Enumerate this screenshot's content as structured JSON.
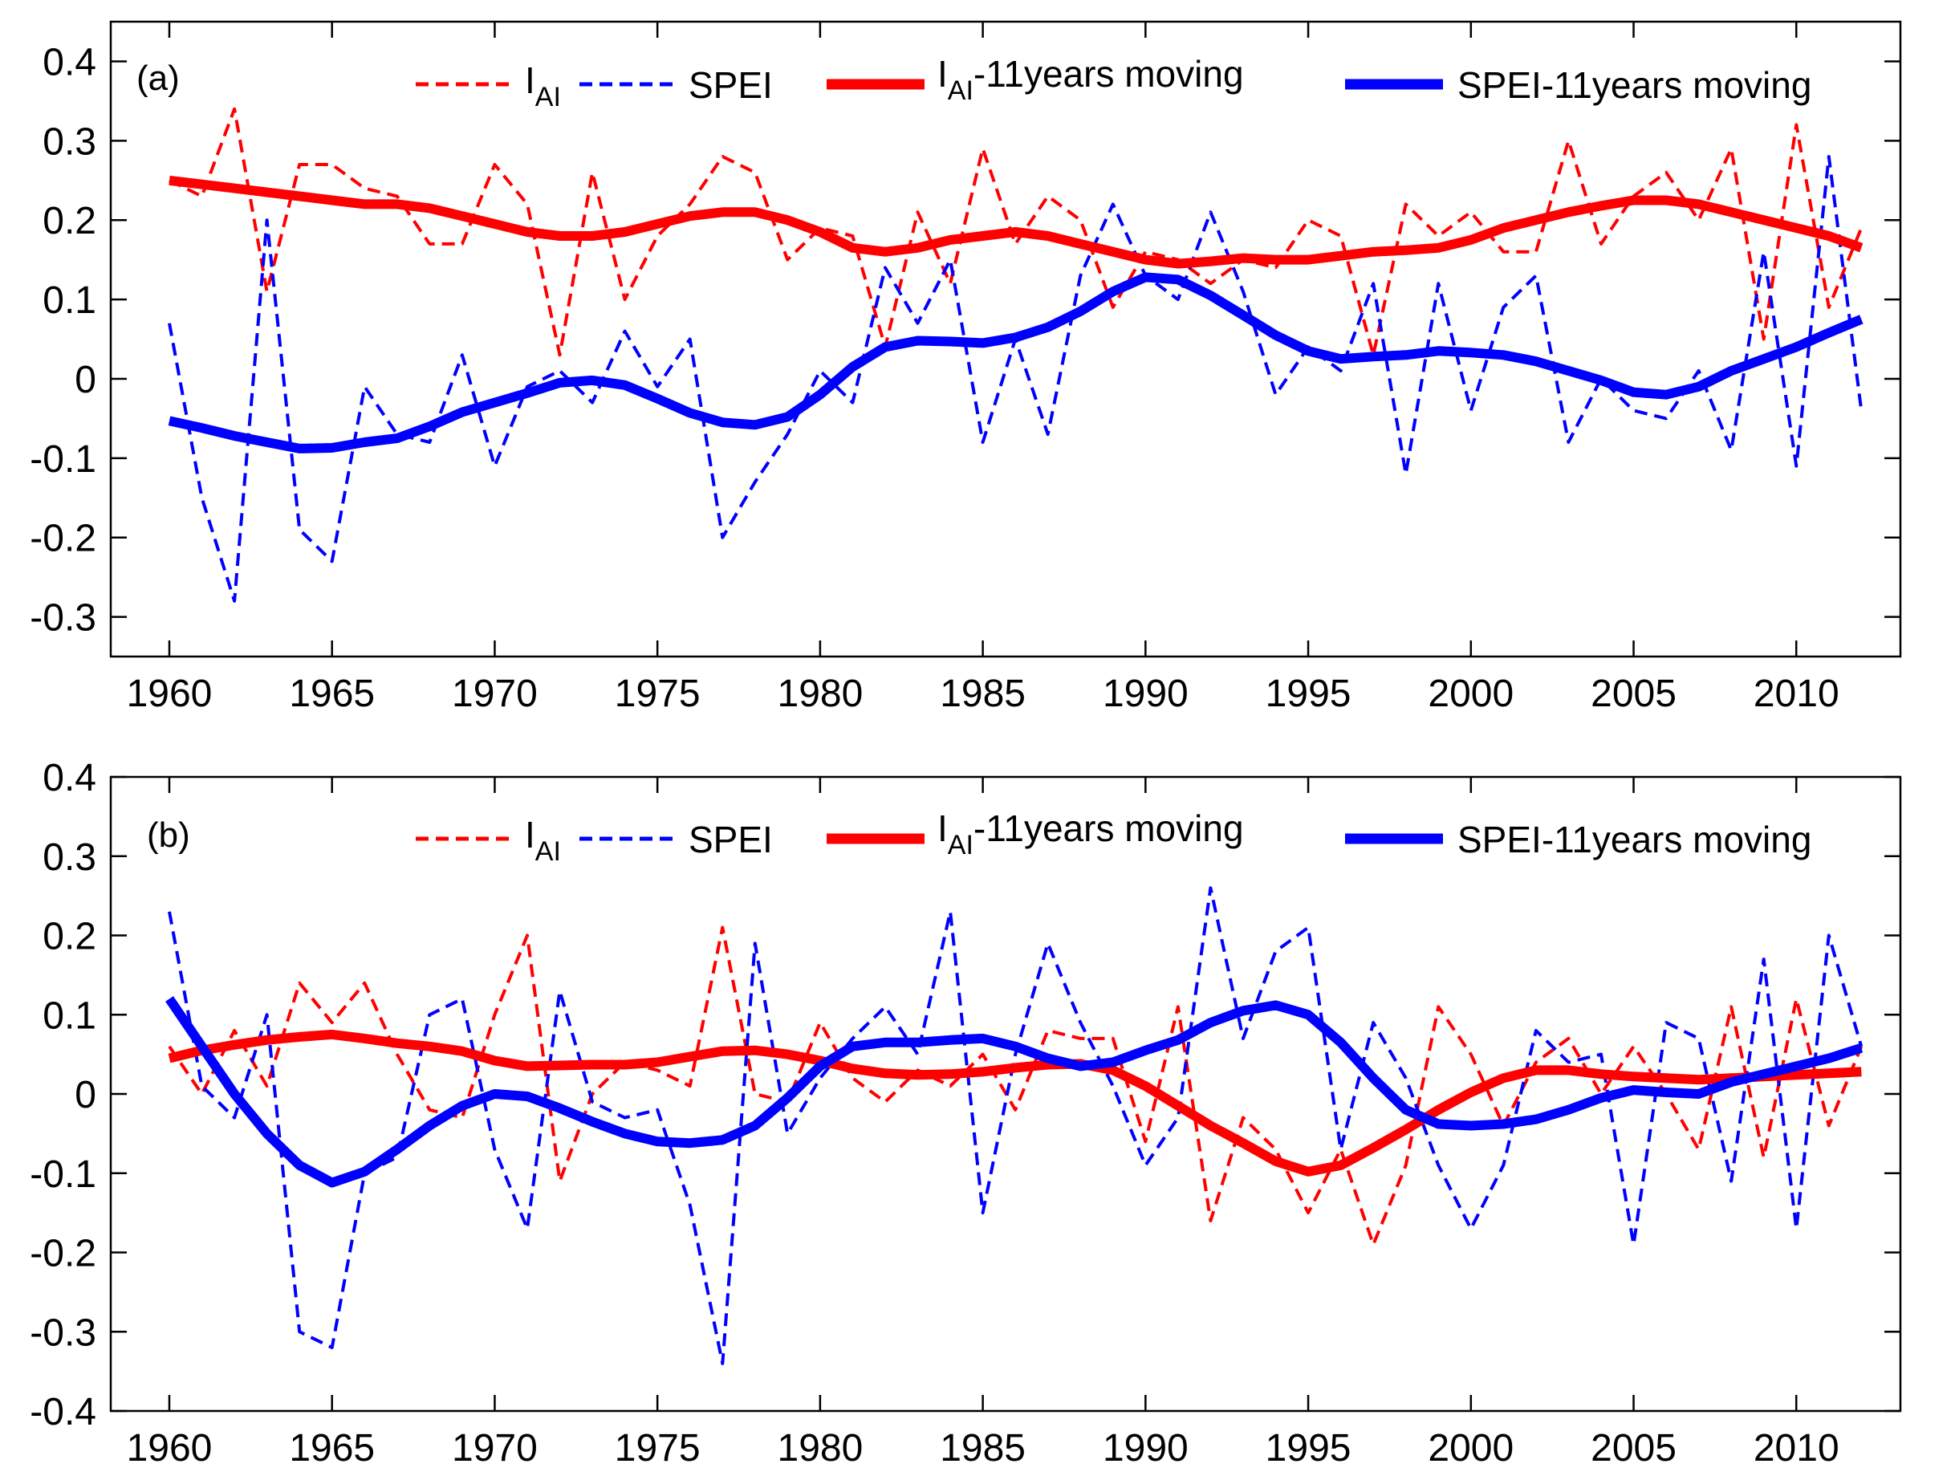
{
  "colors": {
    "ial": "#ff0000",
    "spei": "#0000ff",
    "axis": "#000000"
  },
  "legend_labels": {
    "ial_base": "I",
    "ial_sub": "AI",
    "spei": "SPEI",
    "ial_moving_base": "I",
    "ial_moving_sub": "AI",
    "ial_moving_suffix": "-11years moving",
    "spei_moving": "SPEI-11years moving"
  },
  "chart_data": [
    {
      "type": "line",
      "panel_label": "(a)",
      "xlim": [
        1958.2,
        2013.2
      ],
      "ylim": [
        -0.35,
        0.45
      ],
      "xticks": [
        1960,
        1965,
        1970,
        1975,
        1980,
        1985,
        1990,
        1995,
        2000,
        2005,
        2010
      ],
      "xtick_labels": [
        "1960",
        "1965",
        "1970",
        "1975",
        "1980",
        "1985",
        "1990",
        "1995",
        "2000",
        "2005",
        "2010"
      ],
      "yticks": [
        -0.3,
        -0.2,
        -0.1,
        0,
        0.1,
        0.2,
        0.3,
        0.4
      ],
      "ytick_labels": [
        "-0.3",
        "-0.2",
        "-0.1",
        "0",
        "0.1",
        "0.2",
        "0.3",
        "0.4"
      ],
      "x": [
        1960,
        1961,
        1962,
        1963,
        1964,
        1965,
        1966,
        1967,
        1968,
        1969,
        1970,
        1971,
        1972,
        1973,
        1974,
        1975,
        1976,
        1977,
        1978,
        1979,
        1980,
        1981,
        1982,
        1983,
        1984,
        1985,
        1986,
        1987,
        1988,
        1989,
        1990,
        1991,
        1992,
        1993,
        1994,
        1995,
        1996,
        1997,
        1998,
        1999,
        2000,
        2001,
        2002,
        2003,
        2004,
        2005,
        2006,
        2007,
        2008,
        2009,
        2010,
        2011,
        2012
      ],
      "series": [
        {
          "name": "I_AI",
          "style": "dashed",
          "values": [
            0.25,
            0.23,
            0.34,
            0.11,
            0.27,
            0.27,
            0.24,
            0.23,
            0.17,
            0.17,
            0.27,
            0.22,
            0.03,
            0.26,
            0.1,
            0.18,
            0.22,
            0.28,
            0.26,
            0.15,
            0.19,
            0.18,
            0.04,
            0.21,
            0.12,
            0.29,
            0.17,
            0.23,
            0.2,
            0.09,
            0.16,
            0.15,
            0.12,
            0.15,
            0.14,
            0.2,
            0.18,
            0.03,
            0.22,
            0.18,
            0.21,
            0.16,
            0.16,
            0.3,
            0.17,
            0.23,
            0.26,
            0.2,
            0.29,
            0.05,
            0.32,
            0.09,
            0.19
          ]
        },
        {
          "name": "SPEI",
          "style": "dashed",
          "values": [
            0.07,
            -0.15,
            -0.28,
            0.2,
            -0.19,
            -0.23,
            -0.01,
            -0.07,
            -0.08,
            0.03,
            -0.11,
            -0.01,
            0.01,
            -0.03,
            0.06,
            -0.01,
            0.05,
            -0.2,
            -0.13,
            -0.07,
            0.01,
            -0.03,
            0.14,
            0.07,
            0.15,
            -0.08,
            0.05,
            -0.07,
            0.13,
            0.22,
            0.13,
            0.1,
            0.21,
            0.11,
            -0.02,
            0.04,
            0.01,
            0.12,
            -0.12,
            0.12,
            -0.04,
            0.09,
            0.13,
            -0.08,
            0.0,
            -0.04,
            -0.05,
            0.01,
            -0.09,
            0.16,
            -0.11,
            0.28,
            -0.04
          ]
        },
        {
          "name": "I_AI-11years moving",
          "style": "solid",
          "values": [
            0.25,
            0.245,
            0.24,
            0.235,
            0.23,
            0.225,
            0.22,
            0.22,
            0.215,
            0.205,
            0.195,
            0.185,
            0.18,
            0.18,
            0.185,
            0.195,
            0.205,
            0.21,
            0.21,
            0.2,
            0.185,
            0.165,
            0.16,
            0.165,
            0.175,
            0.18,
            0.185,
            0.18,
            0.17,
            0.16,
            0.15,
            0.145,
            0.148,
            0.152,
            0.15,
            0.15,
            0.155,
            0.16,
            0.162,
            0.165,
            0.175,
            0.19,
            0.2,
            0.21,
            0.218,
            0.225,
            0.225,
            0.22,
            0.21,
            0.2,
            0.19,
            0.18,
            0.165
          ]
        },
        {
          "name": "SPEI-11years moving",
          "style": "solid",
          "values": [
            -0.053,
            -0.062,
            -0.072,
            -0.08,
            -0.088,
            -0.087,
            -0.08,
            -0.075,
            -0.06,
            -0.042,
            -0.03,
            -0.018,
            -0.005,
            -0.002,
            -0.008,
            -0.025,
            -0.043,
            -0.055,
            -0.058,
            -0.048,
            -0.02,
            0.015,
            0.04,
            0.048,
            0.047,
            0.045,
            0.052,
            0.065,
            0.085,
            0.11,
            0.128,
            0.125,
            0.105,
            0.08,
            0.055,
            0.035,
            0.025,
            0.028,
            0.03,
            0.035,
            0.033,
            0.03,
            0.022,
            0.01,
            -0.002,
            -0.017,
            -0.02,
            -0.01,
            0.01,
            0.025,
            0.04,
            0.058,
            0.075
          ]
        }
      ]
    },
    {
      "type": "line",
      "panel_label": "(b)",
      "xlim": [
        1958.2,
        2013.2
      ],
      "ylim": [
        -0.4,
        0.4
      ],
      "xticks": [
        1960,
        1965,
        1970,
        1975,
        1980,
        1985,
        1990,
        1995,
        2000,
        2005,
        2010
      ],
      "xtick_labels": [
        "1960",
        "1965",
        "1970",
        "1975",
        "1980",
        "1985",
        "1990",
        "1995",
        "2000",
        "2005",
        "2010"
      ],
      "yticks": [
        -0.4,
        -0.3,
        -0.2,
        -0.1,
        0,
        0.1,
        0.2,
        0.3,
        0.4
      ],
      "ytick_labels": [
        "-0.4",
        "-0.3",
        "-0.2",
        "-0.1",
        "0",
        "0.1",
        "0.2",
        "0.3",
        "0.4"
      ],
      "x": [
        1960,
        1961,
        1962,
        1963,
        1964,
        1965,
        1966,
        1967,
        1968,
        1969,
        1970,
        1971,
        1972,
        1973,
        1974,
        1975,
        1976,
        1977,
        1978,
        1979,
        1980,
        1981,
        1982,
        1983,
        1984,
        1985,
        1986,
        1987,
        1988,
        1989,
        1990,
        1991,
        1992,
        1993,
        1994,
        1995,
        1996,
        1997,
        1998,
        1999,
        2000,
        2001,
        2002,
        2003,
        2004,
        2005,
        2006,
        2007,
        2008,
        2009,
        2010,
        2011,
        2012
      ],
      "series": [
        {
          "name": "I_AI",
          "style": "dashed",
          "values": [
            0.06,
            0.0,
            0.08,
            0.01,
            0.14,
            0.09,
            0.14,
            0.05,
            -0.02,
            -0.03,
            0.1,
            0.2,
            -0.11,
            0.0,
            0.04,
            0.03,
            0.01,
            0.21,
            0.0,
            -0.01,
            0.09,
            0.02,
            -0.01,
            0.03,
            0.01,
            0.05,
            -0.02,
            0.08,
            0.07,
            0.07,
            -0.06,
            0.11,
            -0.16,
            -0.03,
            -0.07,
            -0.15,
            -0.07,
            -0.19,
            -0.09,
            0.11,
            0.05,
            -0.04,
            0.04,
            0.07,
            0.0,
            0.06,
            0.0,
            -0.07,
            0.11,
            -0.08,
            0.12,
            -0.04,
            0.06
          ]
        },
        {
          "name": "SPEI",
          "style": "dashed",
          "values": [
            0.23,
            0.01,
            -0.03,
            0.1,
            -0.3,
            -0.32,
            -0.1,
            -0.08,
            0.1,
            0.12,
            -0.07,
            -0.17,
            0.13,
            -0.01,
            -0.03,
            -0.02,
            -0.14,
            -0.34,
            0.19,
            -0.05,
            0.02,
            0.07,
            0.11,
            0.05,
            0.23,
            -0.15,
            0.05,
            0.19,
            0.09,
            0.01,
            -0.09,
            -0.03,
            0.26,
            0.07,
            0.18,
            0.21,
            -0.07,
            0.09,
            0.02,
            -0.09,
            -0.17,
            -0.09,
            0.08,
            0.04,
            0.05,
            -0.19,
            0.09,
            0.07,
            -0.11,
            0.17,
            -0.17,
            0.2,
            0.06
          ]
        },
        {
          "name": "I_AI-11years moving",
          "style": "solid",
          "values": [
            0.045,
            0.055,
            0.062,
            0.068,
            0.072,
            0.075,
            0.07,
            0.064,
            0.06,
            0.054,
            0.042,
            0.035,
            0.036,
            0.037,
            0.037,
            0.04,
            0.047,
            0.054,
            0.055,
            0.05,
            0.042,
            0.032,
            0.026,
            0.024,
            0.025,
            0.028,
            0.033,
            0.037,
            0.038,
            0.03,
            0.01,
            -0.015,
            -0.04,
            -0.062,
            -0.085,
            -0.098,
            -0.09,
            -0.068,
            -0.045,
            -0.02,
            0.002,
            0.02,
            0.03,
            0.03,
            0.025,
            0.022,
            0.02,
            0.018,
            0.02,
            0.022,
            0.024,
            0.026,
            0.028
          ]
        },
        {
          "name": "SPEI-11years moving",
          "style": "solid",
          "values": [
            0.12,
            0.06,
            0.0,
            -0.05,
            -0.09,
            -0.112,
            -0.098,
            -0.07,
            -0.04,
            -0.015,
            0.0,
            -0.003,
            -0.018,
            -0.035,
            -0.05,
            -0.06,
            -0.062,
            -0.058,
            -0.04,
            -0.005,
            0.035,
            0.06,
            0.065,
            0.065,
            0.068,
            0.07,
            0.06,
            0.045,
            0.035,
            0.04,
            0.055,
            0.068,
            0.09,
            0.105,
            0.112,
            0.1,
            0.065,
            0.02,
            -0.02,
            -0.038,
            -0.04,
            -0.038,
            -0.032,
            -0.02,
            -0.005,
            0.005,
            0.002,
            0.0,
            0.015,
            0.025,
            0.035,
            0.045,
            0.058
          ]
        }
      ]
    }
  ]
}
